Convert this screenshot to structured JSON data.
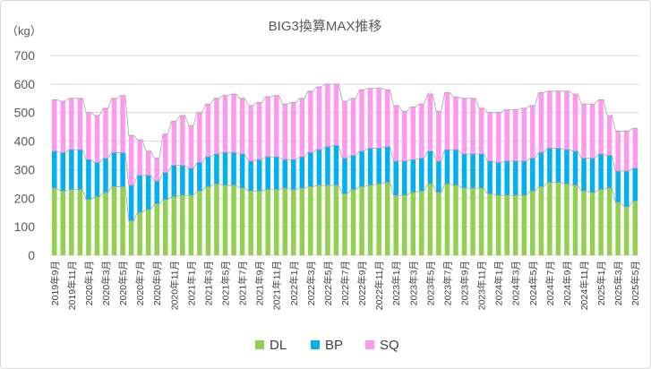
{
  "chart_data": {
    "type": "bar",
    "stacked": true,
    "title": "BIG3換算MAX推移",
    "unit_label": "（kg）",
    "ylim": [
      0,
      700
    ],
    "yticks": [
      0,
      100,
      200,
      300,
      400,
      500,
      600,
      700
    ],
    "grid": true,
    "legend_position": "bottom",
    "x": [
      "2019年9月",
      "2019年10月",
      "2019年11月",
      "2019年12月",
      "2020年1月",
      "2020年2月",
      "2020年3月",
      "2020年4月",
      "2020年5月",
      "2020年6月",
      "2020年7月",
      "2020年8月",
      "2020年9月",
      "2020年10月",
      "2020年11月",
      "2020年12月",
      "2021年1月",
      "2021年2月",
      "2021年3月",
      "2021年4月",
      "2021年5月",
      "2021年6月",
      "2021年7月",
      "2021年8月",
      "2021年9月",
      "2021年10月",
      "2021年11月",
      "2021年12月",
      "2022年1月",
      "2022年2月",
      "2022年3月",
      "2022年4月",
      "2022年5月",
      "2022年6月",
      "2022年7月",
      "2022年8月",
      "2022年9月",
      "2022年10月",
      "2022年11月",
      "2022年12月",
      "2023年1月",
      "2023年2月",
      "2023年3月",
      "2023年4月",
      "2023年5月",
      "2023年6月",
      "2023年7月",
      "2023年8月",
      "2023年9月",
      "2023年10月",
      "2023年11月",
      "2023年12月",
      "2024年1月",
      "2024年2月",
      "2024年3月",
      "2024年4月",
      "2024年5月",
      "2024年6月",
      "2024年7月",
      "2024年8月",
      "2024年9月",
      "2024年10月",
      "2024年11月",
      "2024年12月",
      "2025年1月",
      "2025年2月",
      "2025年3月",
      "2025年4月",
      "2025年5月"
    ],
    "tick_labels": [
      "2019年9月",
      "2019年11月",
      "2020年1月",
      "2020年3月",
      "2020年5月",
      "2020年7月",
      "2020年9月",
      "2020年11月",
      "2021年1月",
      "2021年3月",
      "2021年5月",
      "2021年7月",
      "2021年9月",
      "2021年11月",
      "2022年1月",
      "2022年3月",
      "2022年5月",
      "2022年7月",
      "2022年9月",
      "2022年11月",
      "2023年1月",
      "2023年3月",
      "2023年5月",
      "2023年7月",
      "2023年9月",
      "2023年11月",
      "2024年1月",
      "2024年3月",
      "2024年5月",
      "2024年7月",
      "2024年9月",
      "2024年11月",
      "2025年1月",
      "2025年3月",
      "2025年5月"
    ],
    "series": [
      {
        "name": "DL",
        "color": "#92d050",
        "values": [
          235,
          225,
          230,
          230,
          195,
          205,
          220,
          240,
          240,
          120,
          150,
          160,
          180,
          195,
          205,
          210,
          210,
          225,
          240,
          250,
          245,
          245,
          235,
          225,
          225,
          230,
          230,
          235,
          230,
          235,
          240,
          245,
          245,
          245,
          215,
          230,
          240,
          245,
          250,
          255,
          210,
          210,
          220,
          225,
          250,
          220,
          250,
          245,
          235,
          235,
          235,
          215,
          210,
          210,
          210,
          210,
          225,
          240,
          255,
          255,
          250,
          245,
          225,
          220,
          230,
          235,
          185,
          170,
          190
        ]
      },
      {
        "name": "BP",
        "color": "#00b0f0",
        "values": [
          130,
          135,
          140,
          140,
          140,
          120,
          120,
          120,
          120,
          125,
          130,
          120,
          80,
          95,
          110,
          105,
          95,
          100,
          105,
          105,
          115,
          115,
          120,
          105,
          110,
          115,
          115,
          100,
          105,
          110,
          120,
          125,
          135,
          140,
          125,
          120,
          125,
          130,
          125,
          125,
          120,
          120,
          115,
          115,
          115,
          110,
          120,
          125,
          120,
          120,
          120,
          115,
          115,
          120,
          120,
          120,
          115,
          120,
          120,
          120,
          120,
          120,
          115,
          120,
          125,
          115,
          110,
          125,
          115
        ]
      },
      {
        "name": "SQ",
        "color": "#ff99ee",
        "values": [
          180,
          180,
          180,
          180,
          165,
          165,
          175,
          190,
          200,
          175,
          125,
          85,
          80,
          135,
          155,
          175,
          150,
          175,
          185,
          195,
          200,
          205,
          195,
          195,
          200,
          210,
          215,
          195,
          200,
          205,
          215,
          220,
          220,
          215,
          200,
          200,
          215,
          210,
          210,
          200,
          195,
          175,
          185,
          190,
          200,
          175,
          200,
          185,
          195,
          195,
          160,
          170,
          175,
          180,
          180,
          185,
          185,
          210,
          200,
          200,
          205,
          200,
          190,
          190,
          190,
          140,
          140,
          140,
          140
        ]
      }
    ]
  }
}
